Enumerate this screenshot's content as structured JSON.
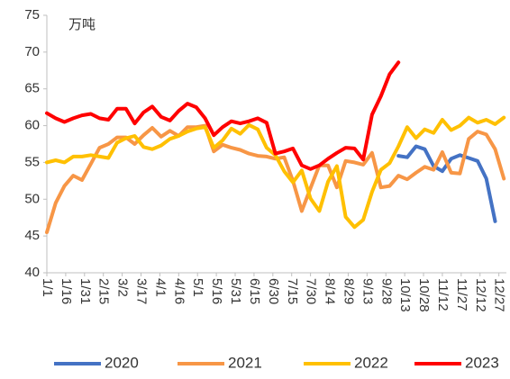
{
  "chart_data": {
    "type": "line",
    "annotation": "万吨",
    "x": [
      1,
      8,
      15,
      22,
      29,
      36,
      43,
      50,
      57,
      64,
      71,
      78,
      85,
      92,
      99,
      106,
      113,
      120,
      127,
      134,
      141,
      148,
      155,
      162,
      169,
      176,
      183,
      190,
      197,
      204,
      211,
      218,
      225,
      232,
      239,
      246,
      253,
      260,
      267,
      274,
      281,
      288,
      295,
      302,
      309,
      316,
      323,
      330,
      337,
      344,
      351,
      358,
      365
    ],
    "xlim": [
      1,
      367
    ],
    "xticks": [
      {
        "value": 1,
        "label": "1/1"
      },
      {
        "value": 16,
        "label": "1/16"
      },
      {
        "value": 31,
        "label": "1/31"
      },
      {
        "value": 46,
        "label": "2/15"
      },
      {
        "value": 61,
        "label": "3/2"
      },
      {
        "value": 76,
        "label": "3/17"
      },
      {
        "value": 91,
        "label": "4/1"
      },
      {
        "value": 106,
        "label": "4/16"
      },
      {
        "value": 121,
        "label": "5/1"
      },
      {
        "value": 136,
        "label": "5/16"
      },
      {
        "value": 151,
        "label": "5/31"
      },
      {
        "value": 166,
        "label": "6/15"
      },
      {
        "value": 181,
        "label": "6/30"
      },
      {
        "value": 196,
        "label": "7/15"
      },
      {
        "value": 211,
        "label": "7/30"
      },
      {
        "value": 226,
        "label": "8/14"
      },
      {
        "value": 241,
        "label": "8/29"
      },
      {
        "value": 256,
        "label": "9/13"
      },
      {
        "value": 271,
        "label": "9/28"
      },
      {
        "value": 286,
        "label": "10/13"
      },
      {
        "value": 301,
        "label": "10/28"
      },
      {
        "value": 316,
        "label": "11/12"
      },
      {
        "value": 331,
        "label": "11/27"
      },
      {
        "value": 346,
        "label": "12/12"
      },
      {
        "value": 361,
        "label": "12/27"
      }
    ],
    "ylim": [
      40,
      75
    ],
    "yticks": [
      40,
      45,
      50,
      55,
      60,
      65,
      70,
      75
    ],
    "series": [
      {
        "name": "2020",
        "color": "#4472c4",
        "values": [
          null,
          null,
          null,
          null,
          null,
          null,
          null,
          null,
          null,
          null,
          null,
          null,
          null,
          null,
          null,
          null,
          null,
          null,
          null,
          null,
          null,
          null,
          null,
          null,
          null,
          null,
          null,
          null,
          null,
          null,
          null,
          null,
          null,
          null,
          null,
          null,
          null,
          null,
          null,
          null,
          55.9,
          55.7,
          57.2,
          56.8,
          54.5,
          53.8,
          55.5,
          56,
          55.6,
          55.2,
          52.8,
          47.0,
          null
        ]
      },
      {
        "name": "2021",
        "color": "#f79646",
        "values": [
          45.5,
          49.5,
          51.8,
          53.2,
          52.6,
          54.8,
          57,
          57.5,
          58.4,
          58.4,
          57.5,
          58.7,
          59.7,
          58.5,
          59.3,
          58.6,
          59.8,
          59.8,
          60,
          56.5,
          57.4,
          57,
          56.7,
          56.2,
          55.9,
          55.8,
          55.5,
          55.7,
          52.5,
          48.4,
          51.5,
          54.6,
          54.6,
          51.6,
          55.2,
          55,
          54.7,
          56.3,
          51.6,
          51.8,
          53.2,
          52.7,
          53.6,
          54.4,
          54,
          56.4,
          53.6,
          53.5,
          58.2,
          59.2,
          58.8,
          56.8,
          52.8
        ]
      },
      {
        "name": "2022",
        "color": "#ffc000",
        "values": [
          55,
          55.3,
          55,
          55.8,
          55.8,
          56,
          55.8,
          55.6,
          57.7,
          58.3,
          58.6,
          57.1,
          56.8,
          57.3,
          58.2,
          58.6,
          59.2,
          59.6,
          59.8,
          57,
          58,
          59.6,
          58.9,
          60.1,
          59.5,
          57,
          56,
          53.8,
          52.3,
          53.9,
          50.1,
          48.4,
          52.4,
          54.5,
          47.6,
          46.2,
          47.2,
          51,
          54,
          54.9,
          57.2,
          59.8,
          58.3,
          59.5,
          59,
          60.8,
          59.4,
          60,
          61.1,
          60.4,
          60.8,
          60.2,
          61.1
        ]
      },
      {
        "name": "2023",
        "color": "#ff0000",
        "values": [
          61.7,
          61,
          60.5,
          61,
          61.4,
          61.6,
          61,
          60.8,
          62.3,
          62.3,
          60.3,
          61.8,
          62.6,
          61.2,
          60.7,
          62,
          63,
          62.5,
          61,
          58.7,
          59.8,
          60.6,
          60.3,
          60.6,
          61,
          60.4,
          56.2,
          56.5,
          56.9,
          54.6,
          54.1,
          54.6,
          55.5,
          56.3,
          57,
          56.9,
          55.4,
          61.5,
          64,
          67,
          68.6,
          null,
          null,
          null,
          null,
          null,
          null,
          null,
          null,
          null,
          null,
          null,
          null
        ]
      }
    ]
  }
}
